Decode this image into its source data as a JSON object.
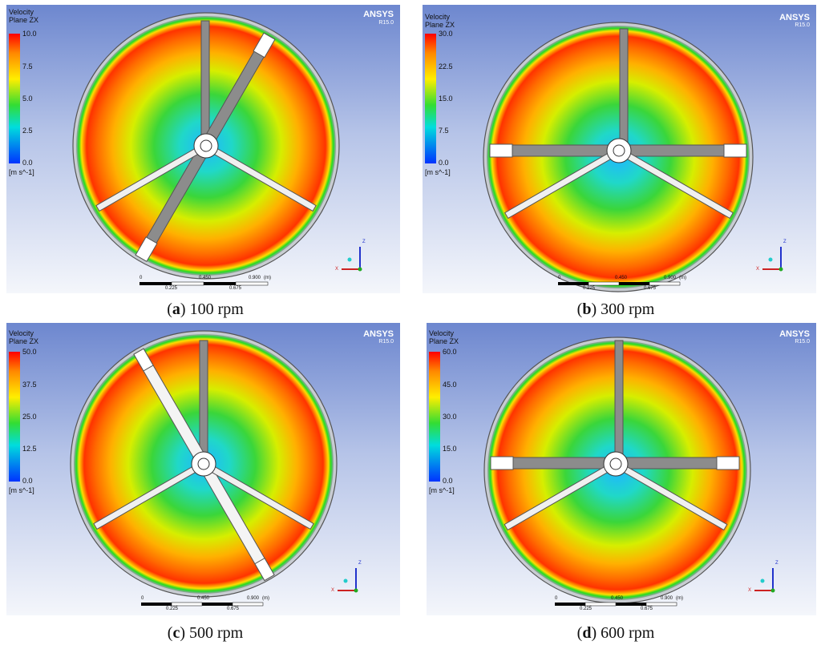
{
  "brand": "ANSYS",
  "version": "R15.0",
  "legend_title_1": "Velocity",
  "legend_title_2": "Plane ZX",
  "unit": "[m s^-1]",
  "scale": {
    "t0": "0",
    "t1": "0.225",
    "t2": "0.450",
    "t3": "0.675",
    "t4": "0.900",
    "unit": "(m)"
  },
  "axis": {
    "z": "Z",
    "x": "X"
  },
  "panels": [
    {
      "letter": "a",
      "speed": "100 rpm",
      "ticks": [
        "10.0",
        "7.5",
        "5.0",
        "2.5",
        "0.0"
      ]
    },
    {
      "letter": "b",
      "speed": "300 rpm",
      "ticks": [
        "30.0",
        "22.5",
        "15.0",
        "7.5",
        "0.0"
      ]
    },
    {
      "letter": "c",
      "speed": "500 rpm",
      "ticks": [
        "50.0",
        "37.5",
        "25.0",
        "12.5",
        "0.0"
      ]
    },
    {
      "letter": "d",
      "speed": "600 rpm",
      "ticks": [
        "60.0",
        "45.0",
        "30.0",
        "15.0",
        "0.0"
      ]
    }
  ],
  "colors": {
    "red": "#ff2a00",
    "orange": "#ff8a00",
    "yellow": "#e8f000",
    "green": "#2ed62e",
    "cyan": "#22d9c8",
    "blade": "#8a8a8a"
  }
}
